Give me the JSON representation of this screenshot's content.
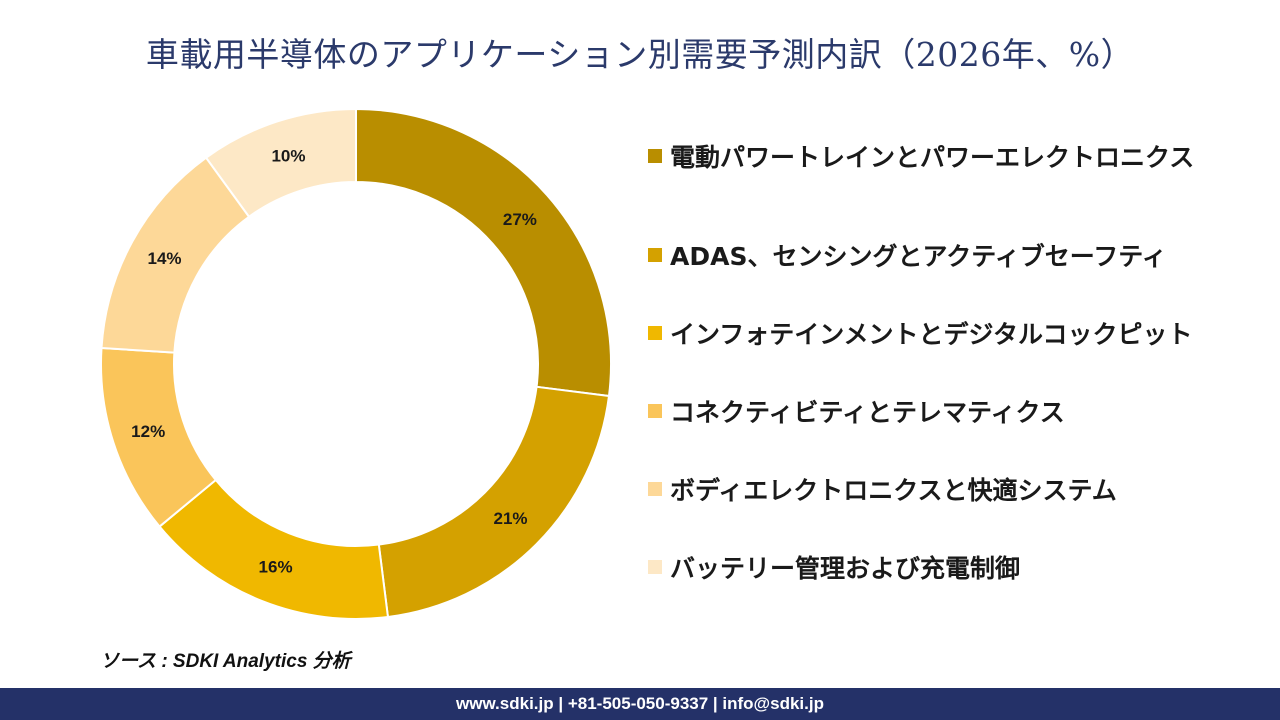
{
  "title": "車載用半導体のアプリケーション別需要予測内訳（2026年、%）",
  "chart_data": {
    "type": "pie",
    "title": "車載用半導体のアプリケーション別需要予測内訳（2026年、%）",
    "categories": [
      "電動パワートレインとパワーエレクトロニクス",
      "ADAS、センシングとアクティブセーフティ",
      "インフォテインメントとデジタルコックピット",
      "コネクティビティとテレマティクス",
      "ボディエレクトロニクスと快適システム",
      "バッテリー管理および充電制御"
    ],
    "values": [
      27,
      21,
      16,
      12,
      14,
      10
    ],
    "labels": [
      "27%",
      "21%",
      "16%",
      "12%",
      "14%",
      "10%"
    ],
    "colors": [
      "#b98e00",
      "#d4a100",
      "#f0b800",
      "#fac55a",
      "#fdd898",
      "#fde8c6"
    ],
    "donut": true,
    "legend": "right"
  },
  "source": "ソース : SDKI Analytics 分析",
  "footer": "www.sdki.jp | +81-505-050-9337 | info@sdki.jp"
}
